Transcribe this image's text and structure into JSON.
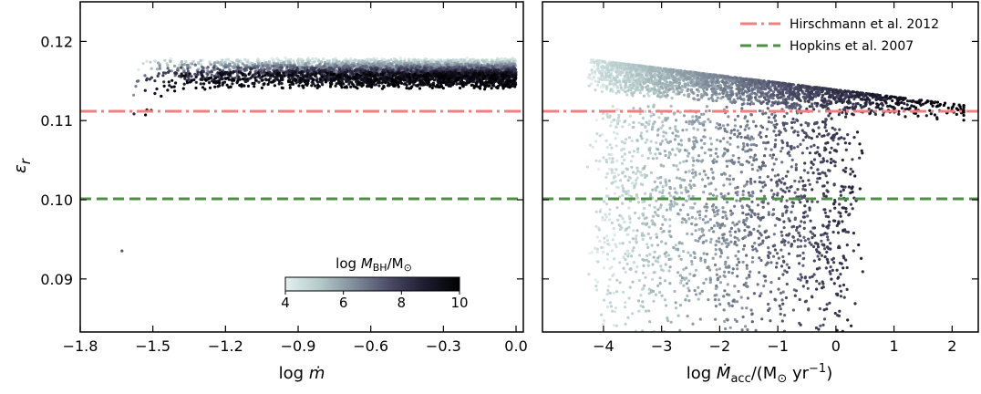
{
  "chart_data": [
    {
      "type": "scatter",
      "xlabel": "log ṁ",
      "ylabel": "εr",
      "xlim": [
        -1.8,
        0.03
      ],
      "ylim": [
        0.0833,
        0.125
      ],
      "xticks": [
        -1.8,
        -1.5,
        -1.2,
        -0.9,
        -0.6,
        -0.3,
        0.0
      ],
      "xtick_labels": [
        "−1.8",
        "−1.5",
        "−1.2",
        "−0.9",
        "−0.6",
        "−0.3",
        "0.0"
      ],
      "yticks": [
        0.09,
        0.1,
        0.11,
        0.12
      ],
      "ytick_labels": [
        "0.09",
        "0.10",
        "0.11",
        "0.12"
      ],
      "color_variable": "log MBH/M⊙",
      "colormap": [
        "#e3f0ef",
        "#b4c9c9",
        "#7f8b9a",
        "#4a4a66",
        "#1e1c30",
        "#000000"
      ],
      "series": [
        {
          "reference_lines": [
            {
              "y": 0.1111,
              "style": "dashdot",
              "color": "#f08080"
            },
            {
              "y": 0.1,
              "style": "dashed",
              "color": "#4f8f45"
            }
          ]
        }
      ],
      "colorbar": {
        "label_main": "log ",
        "label_italic": "M",
        "label_sub": "BH",
        "label_rest": "/M",
        "label_sun": "⊙",
        "ticks": [
          4,
          6,
          8,
          10
        ],
        "tick_labels": [
          "4",
          "6",
          "8",
          "10"
        ],
        "range": [
          4,
          10
        ]
      }
    },
    {
      "type": "scatter",
      "xlabel": "log Ṁacc/(M⊙ yr−1)",
      "ylabel": "",
      "xlim": [
        -5.05,
        2.45
      ],
      "ylim": [
        0.0833,
        0.125
      ],
      "xticks": [
        -4,
        -3,
        -2,
        -1,
        0,
        1,
        2
      ],
      "xtick_labels": [
        "−4",
        "−3",
        "−2",
        "−1",
        "0",
        "1",
        "2"
      ],
      "yticks": [
        0.09,
        0.1,
        0.11,
        0.12
      ],
      "legend": {
        "placement": "upper-right",
        "entries": [
          {
            "label": "Hirschmann et al. 2012",
            "style": "dashdot",
            "color": "#f08080"
          },
          {
            "label": "Hopkins et al. 2007",
            "style": "dashed",
            "color": "#4f8f45"
          }
        ]
      }
    }
  ]
}
